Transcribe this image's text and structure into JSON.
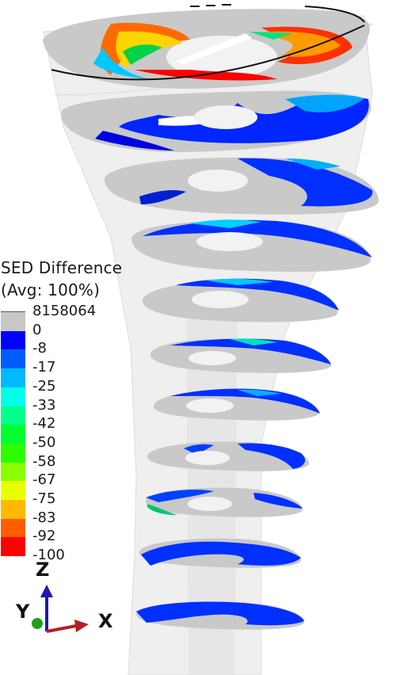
{
  "legend": {
    "title_line1": "SED Difference",
    "title_line2": "(Avg: 100%)",
    "entries": [
      {
        "label": "8158064",
        "color": "#c8c8c8"
      },
      {
        "label": "0",
        "color": "#0000ff"
      },
      {
        "label": "-8",
        "color": "#005dff"
      },
      {
        "label": "-17",
        "color": "#00b9ff"
      },
      {
        "label": "-25",
        "color": "#00ffe8"
      },
      {
        "label": "-33",
        "color": "#00ff8b"
      },
      {
        "label": "-42",
        "color": "#00ff2e"
      },
      {
        "label": "-50",
        "color": "#2eff00"
      },
      {
        "label": "-58",
        "color": "#8bff00"
      },
      {
        "label": "-67",
        "color": "#e8ff00"
      },
      {
        "label": "-75",
        "color": "#ffb900"
      },
      {
        "label": "-83",
        "color": "#ff5d00"
      },
      {
        "label": "-92",
        "color": "#ff0000"
      },
      {
        "label": "-100",
        "color": null
      }
    ]
  },
  "triad": {
    "z_label": "Z",
    "y_label": "Y",
    "x_label": "X",
    "z_color": "#1a1ab4",
    "x_color": "#b42020",
    "y_color": "#20a020"
  },
  "colors": {
    "cut_surface": "#c9c9c9",
    "bone_shell": "#ececec",
    "cortex_edge": "#9a9a9a"
  }
}
